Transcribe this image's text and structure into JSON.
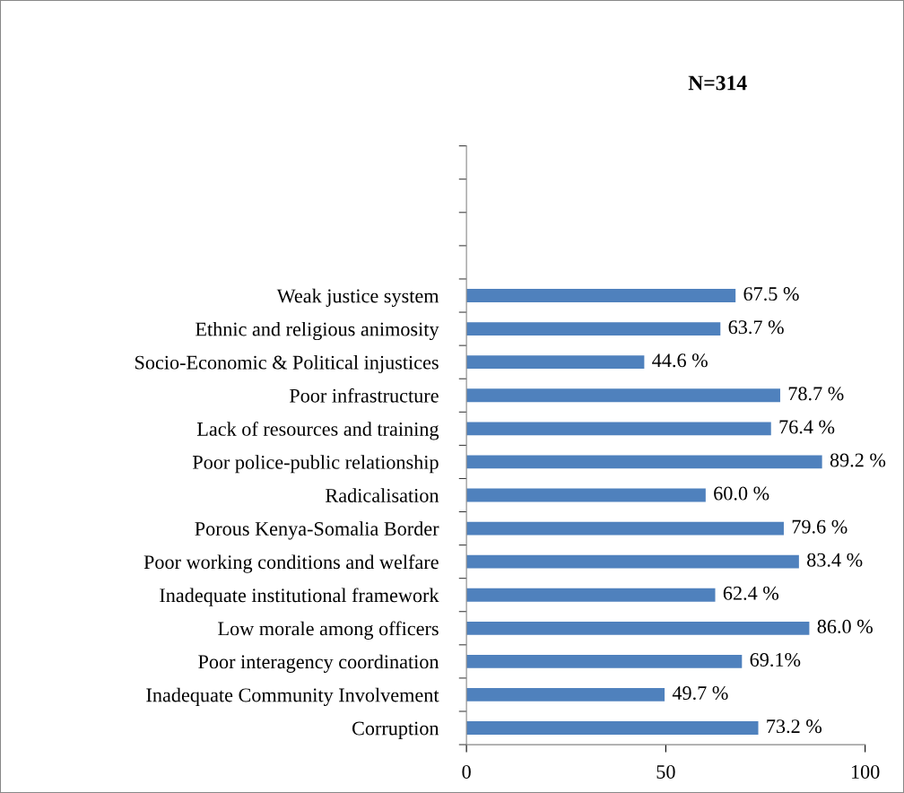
{
  "chart_data": {
    "type": "bar",
    "orientation": "horizontal",
    "title": "N=314",
    "categories": [
      null,
      null,
      null,
      null,
      "Weak justice system",
      "Ethnic and religious animosity",
      "Socio-Economic & Political injustices",
      "Poor infrastructure",
      "Lack of resources and training",
      "Poor police-public relationship",
      "Radicalisation",
      "Porous Kenya-Somalia Border",
      "Poor working conditions and welfare",
      "Inadequate institutional framework",
      "Low morale among officers",
      "Poor interagency coordination",
      "Inadequate Community Involvement",
      "Corruption"
    ],
    "values": [
      null,
      null,
      null,
      null,
      67.5,
      63.7,
      44.6,
      78.7,
      76.4,
      89.2,
      60.0,
      79.6,
      83.4,
      62.4,
      86.0,
      69.1,
      49.7,
      73.2
    ],
    "value_labels": [
      null,
      null,
      null,
      null,
      "67.5 %",
      "63.7 %",
      "44.6 %",
      "78.7 %",
      "76.4 %",
      "89.2 %",
      "60.0 %",
      "79.6 %",
      "83.4 %",
      "62.4 %",
      "86.0 %",
      "69.1%",
      "49.7 %",
      "73.2 %"
    ],
    "color": "#4f81bd",
    "xlim": [
      0,
      100
    ],
    "xticks": [
      0,
      50,
      100
    ],
    "grid": false,
    "legend": false
  }
}
